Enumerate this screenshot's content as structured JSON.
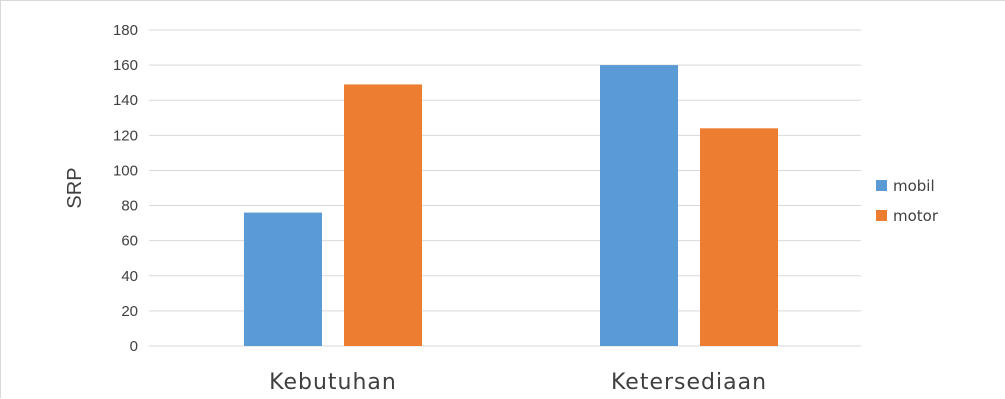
{
  "chart_data": {
    "type": "bar",
    "categories": [
      "Kebutuhan",
      "Ketersediaan"
    ],
    "series": [
      {
        "name": "mobil",
        "color": "#5B9BD5",
        "values": [
          76,
          160
        ]
      },
      {
        "name": "motor",
        "color": "#ED7D31",
        "values": [
          149,
          124
        ]
      }
    ],
    "title": "",
    "xlabel": "",
    "ylabel": "SRP",
    "ylim": [
      0,
      180
    ],
    "yticks": [
      "0",
      "20",
      "40",
      "60",
      "80",
      "100",
      "120",
      "140",
      "160",
      "180"
    ],
    "grid": true,
    "legend_position": "right"
  }
}
